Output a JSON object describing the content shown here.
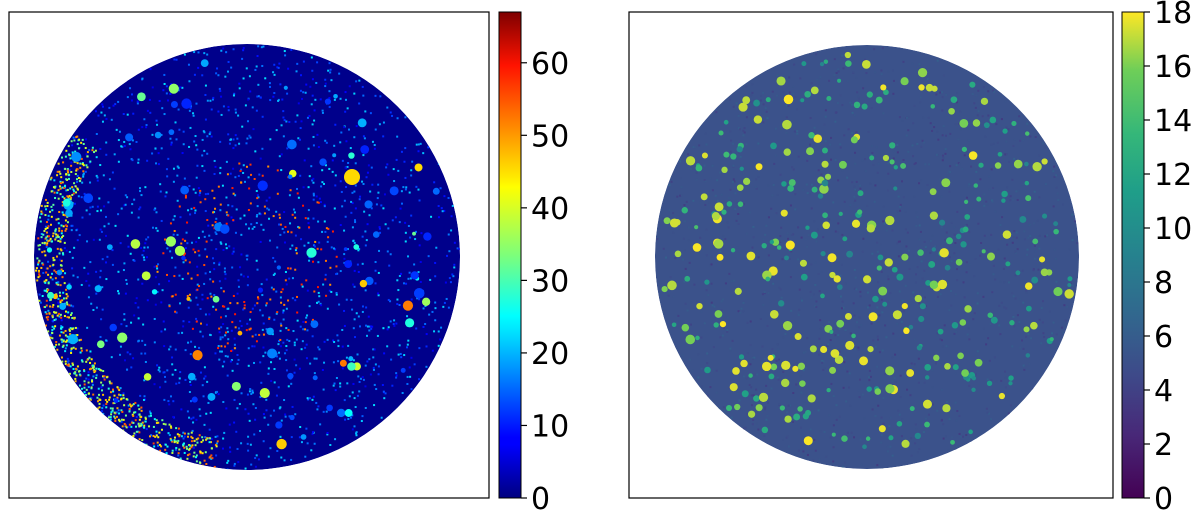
{
  "chart_data": [
    {
      "type": "heatmap",
      "title": "",
      "xlabel": "",
      "ylabel": "",
      "colormap": "jet",
      "background": "#00008b",
      "clim": [
        0,
        67
      ],
      "colorbar_ticks": [
        {
          "value": 0,
          "label": "0"
        },
        {
          "value": 10,
          "label": "10"
        },
        {
          "value": 20,
          "label": "20"
        },
        {
          "value": 30,
          "label": "30"
        },
        {
          "value": 40,
          "label": "40"
        },
        {
          "value": 50,
          "label": "50"
        },
        {
          "value": 60,
          "label": "60"
        }
      ],
      "mask": "circular",
      "axes_ticks_visible": false
    },
    {
      "type": "heatmap",
      "title": "",
      "xlabel": "",
      "ylabel": "",
      "colormap": "viridis",
      "background": "#3b528b",
      "clim": [
        0,
        18
      ],
      "colorbar_ticks": [
        {
          "value": 0,
          "label": "0"
        },
        {
          "value": 2,
          "label": "2"
        },
        {
          "value": 4,
          "label": "4"
        },
        {
          "value": 6,
          "label": "6"
        },
        {
          "value": 8,
          "label": "8"
        },
        {
          "value": 10,
          "label": "10"
        },
        {
          "value": 12,
          "label": "12"
        },
        {
          "value": 14,
          "label": "14"
        },
        {
          "value": 16,
          "label": "16"
        },
        {
          "value": 18,
          "label": "18"
        }
      ],
      "mask": "circular",
      "axes_ticks_visible": false
    }
  ]
}
